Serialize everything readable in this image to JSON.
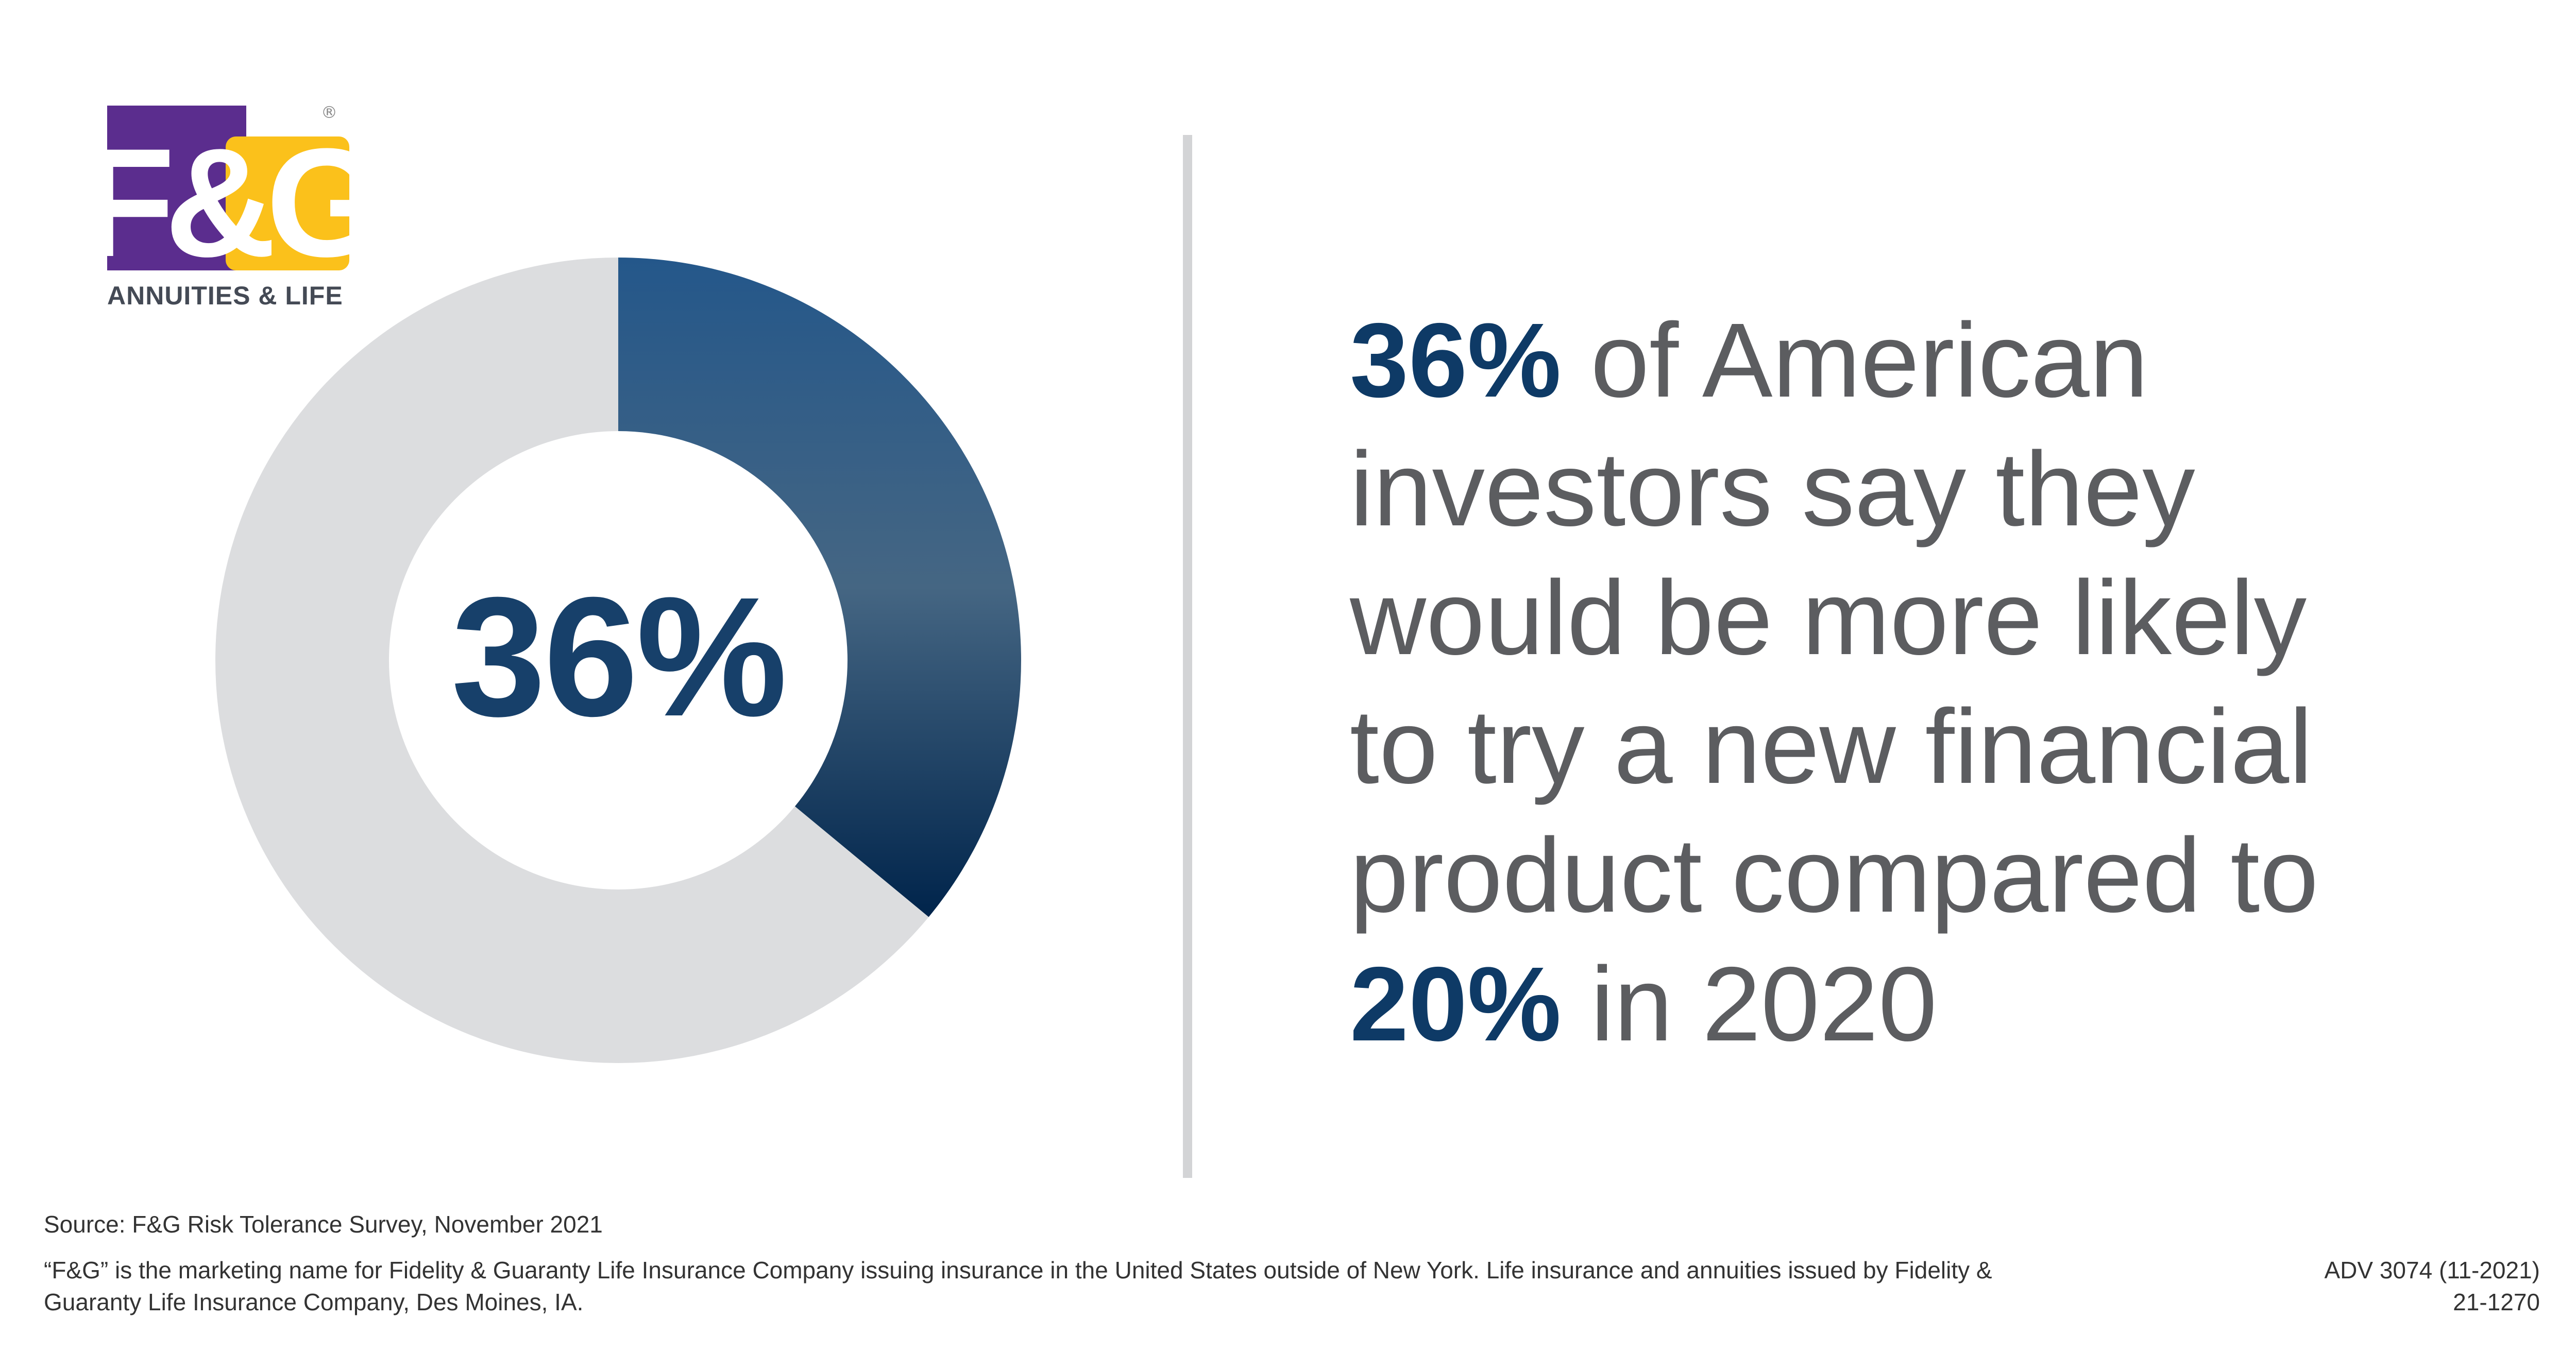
{
  "logo": {
    "mark_text": "F&G",
    "registered": "®",
    "subtitle": "ANNUITIES & LIFE",
    "colors": {
      "purple": "#5b2d8e",
      "gold": "#fbc11b"
    }
  },
  "chart_data": {
    "type": "pie",
    "donut": true,
    "values": [
      36,
      64
    ],
    "center_label": "36%",
    "colors": {
      "highlight_top": "#2a5884",
      "highlight_mid": "#456683",
      "highlight_bottom": "#00264d",
      "remainder": "#dcdddf"
    }
  },
  "headline": {
    "lines": [
      {
        "bold": "36%",
        "rest": " of American"
      },
      {
        "bold": "",
        "rest": "investors say they"
      },
      {
        "bold": "",
        "rest": "would be more likely"
      },
      {
        "bold": "",
        "rest": "to try a new financial"
      },
      {
        "bold": "",
        "rest": "product compared to"
      },
      {
        "bold": "20%",
        "rest": " in 2020"
      }
    ]
  },
  "footer": {
    "source": "Source: F&G Risk Tolerance Survey, November 2021",
    "disclaimer_line1": "“F&G” is the marketing name for Fidelity & Guaranty Life Insurance Company issuing insurance in the United States outside of New York. Life insurance and annuities issued by Fidelity &",
    "disclaimer_line2": "Guaranty Life Insurance Company, Des Moines, IA.",
    "adv_code": "ADV 3074 (11-2021)",
    "adv_number": "21-1270"
  }
}
